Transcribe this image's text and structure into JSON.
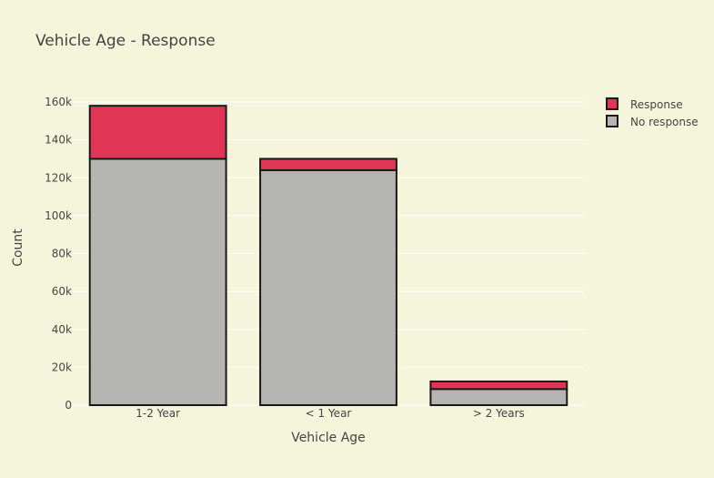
{
  "chart_data": {
    "type": "bar",
    "stacked": true,
    "title": "Vehicle Age - Response",
    "xlabel": "Vehicle Age",
    "ylabel": "Count",
    "categories": [
      "1-2 Year",
      "< 1 Year",
      "> 2 Years"
    ],
    "series": [
      {
        "name": "No response",
        "color": "#b4b4b0",
        "values": [
          130000,
          124000,
          8500
        ]
      },
      {
        "name": "Response",
        "color": "#e03555",
        "values": [
          28000,
          6000,
          4000
        ]
      }
    ],
    "ylim": [
      0,
      160000
    ],
    "yticks": [
      0,
      20000,
      40000,
      60000,
      80000,
      100000,
      120000,
      140000,
      160000
    ],
    "ytick_labels": [
      "0",
      "20k",
      "40k",
      "60k",
      "80k",
      "100k",
      "120k",
      "140k",
      "160k"
    ],
    "grid": true,
    "legend": {
      "placement": "top-right",
      "entries": [
        "Response",
        "No response"
      ]
    },
    "background": "#f5f5dc",
    "bar_outline": "#1a1a1a"
  }
}
